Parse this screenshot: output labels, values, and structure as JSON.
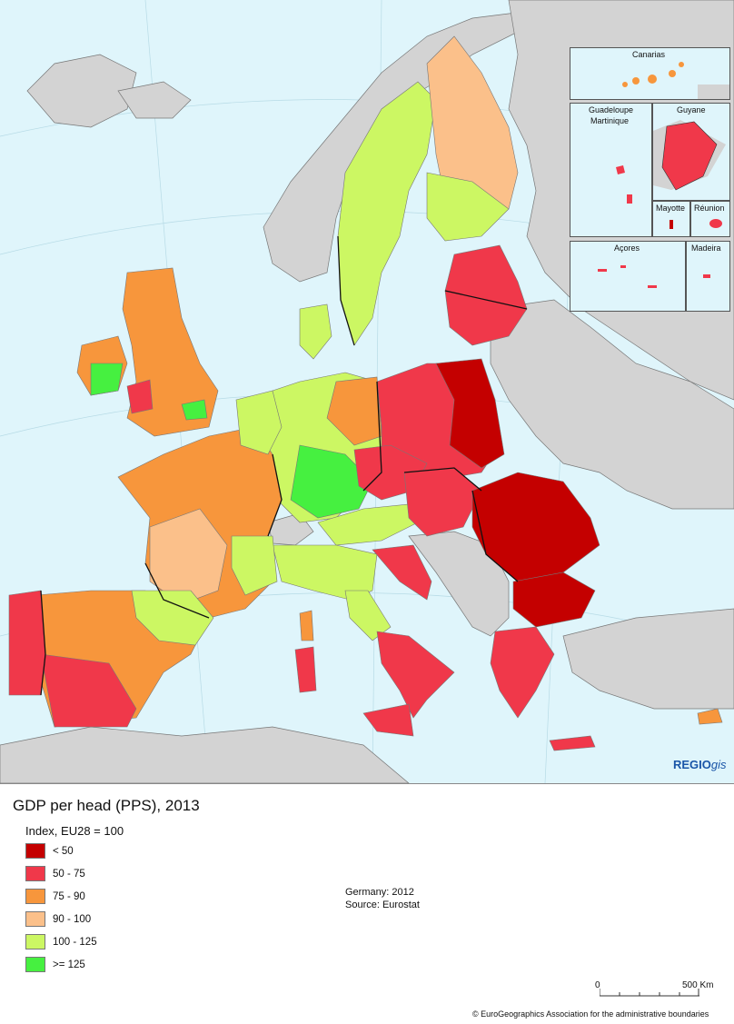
{
  "map": {
    "brand": "REGIO",
    "brand_suffix": "gis",
    "insets": {
      "canarias": "Canarias",
      "guadeloupe": "Guadeloupe",
      "martinique": "Martinique",
      "guyane": "Guyane",
      "mayotte": "Mayotte",
      "reunion": "Réunion",
      "acores": "Açores",
      "madeira": "Madeira"
    }
  },
  "legend": {
    "title": "GDP per head (PPS), 2013",
    "subtitle": "Index, EU28 = 100",
    "classes": [
      {
        "label": "< 50",
        "color": "#c40000"
      },
      {
        "label": "50 - 75",
        "color": "#f0384a"
      },
      {
        "label": "75 - 90",
        "color": "#f7963c"
      },
      {
        "label": "90 - 100",
        "color": "#fbc08a"
      },
      {
        "label": "100 - 125",
        "color": "#ccf763"
      },
      {
        "label": ">= 125",
        "color": "#46f040"
      }
    ],
    "note_germany": "Germany: 2012",
    "note_source": "Source: Eurostat",
    "scale_start": "0",
    "scale_end": "500 Km",
    "copyright": "© EuroGeographics Association for the administrative boundaries"
  },
  "colors": {
    "sea": "#dff5fb",
    "non_eu_land": "#d3d3d3",
    "border": "#111111"
  }
}
